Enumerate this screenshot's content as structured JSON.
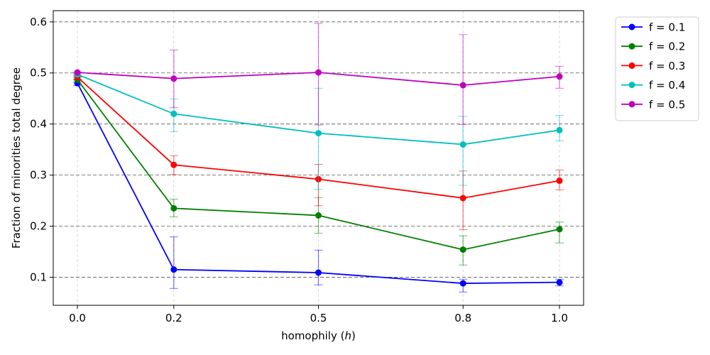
{
  "chart_data": {
    "type": "line",
    "xlabel": "homophily",
    "xlabel_var": "h",
    "ylabel": "Fraction of minorities total degree",
    "x": [
      0.0,
      0.2,
      0.5,
      0.8,
      1.0
    ],
    "x_tick_labels": [
      "0.0",
      "0.2",
      "0.5",
      "0.8",
      "1.0"
    ],
    "y_ticks": [
      0.1,
      0.2,
      0.3,
      0.4,
      0.5,
      0.6
    ],
    "y_tick_labels": [
      "0.1",
      "0.2",
      "0.3",
      "0.4",
      "0.5",
      "0.6"
    ],
    "ylim": [
      0.045,
      0.622
    ],
    "grid": {
      "x": "dashed-light",
      "y": "dashed-dark"
    },
    "legend_position": "outside-top-right",
    "series": [
      {
        "name": "f = 0.1",
        "color": "#0000ff",
        "values": [
          0.48,
          0.115,
          0.109,
          0.088,
          0.09
        ],
        "err_low": [
          0.475,
          0.078,
          0.085,
          0.071,
          0.083
        ],
        "err_high": [
          0.487,
          0.179,
          0.153,
          0.096,
          0.096
        ]
      },
      {
        "name": "f = 0.2",
        "color": "#008000",
        "values": [
          0.487,
          0.235,
          0.221,
          0.154,
          0.194
        ],
        "err_low": [
          0.482,
          0.218,
          0.186,
          0.124,
          0.167
        ],
        "err_high": [
          0.492,
          0.253,
          0.256,
          0.181,
          0.208
        ]
      },
      {
        "name": "f = 0.3",
        "color": "#ff0000",
        "values": [
          0.492,
          0.32,
          0.292,
          0.255,
          0.289
        ],
        "err_low": [
          0.488,
          0.301,
          0.24,
          0.193,
          0.271
        ],
        "err_high": [
          0.496,
          0.338,
          0.321,
          0.308,
          0.31
        ]
      },
      {
        "name": "f = 0.4",
        "color": "#00bfbf",
        "values": [
          0.497,
          0.42,
          0.382,
          0.36,
          0.388
        ],
        "err_low": [
          0.495,
          0.385,
          0.272,
          0.28,
          0.367
        ],
        "err_high": [
          0.499,
          0.449,
          0.47,
          0.415,
          0.417
        ]
      },
      {
        "name": "f = 0.5",
        "color": "#bf00bf",
        "values": [
          0.501,
          0.489,
          0.501,
          0.476,
          0.493
        ],
        "err_low": [
          0.5,
          0.432,
          0.398,
          0.399,
          0.47
        ],
        "err_high": [
          0.502,
          0.545,
          0.597,
          0.575,
          0.513
        ]
      }
    ]
  }
}
